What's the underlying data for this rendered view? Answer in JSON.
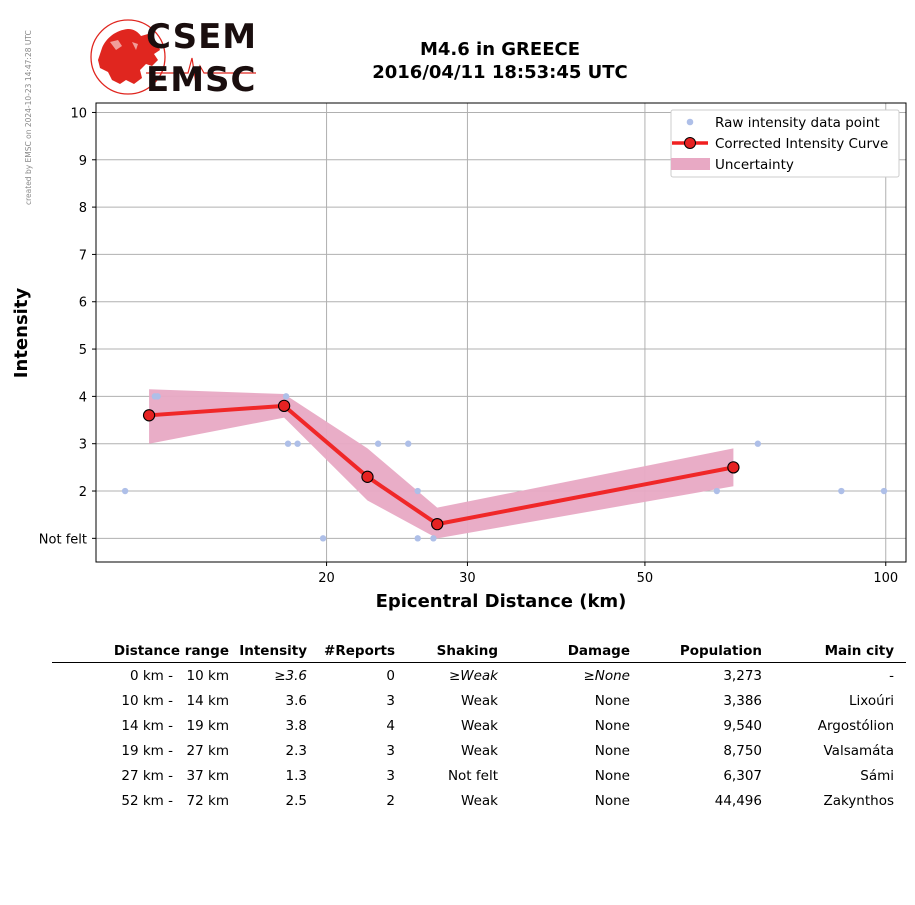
{
  "side_note": "created by EMSC on 2024-10-23 14:47:28 UTC",
  "logo": {
    "line1": "CSEM",
    "line2": "EMSC",
    "accent": "#e0261f"
  },
  "title": {
    "line1": "M4.6 in GREECE",
    "line2": "2016/04/11 18:53:45 UTC"
  },
  "chart_data": {
    "type": "line",
    "xlabel": "Epicentral Distance (km)",
    "ylabel": "Intensity",
    "xscale": "log",
    "xlim": [
      10.3,
      106
    ],
    "ylim": [
      0.5,
      10.2
    ],
    "xticks": [
      20,
      30,
      50,
      100
    ],
    "yticks": [
      {
        "value": 1,
        "label": "Not felt"
      },
      {
        "value": 2,
        "label": "2"
      },
      {
        "value": 3,
        "label": "3"
      },
      {
        "value": 4,
        "label": "4"
      },
      {
        "value": 5,
        "label": "5"
      },
      {
        "value": 6,
        "label": "6"
      },
      {
        "value": 7,
        "label": "7"
      },
      {
        "value": 8,
        "label": "8"
      },
      {
        "value": 9,
        "label": "9"
      },
      {
        "value": 10,
        "label": "10"
      }
    ],
    "grid": true,
    "legend_position": "top-right",
    "series": [
      {
        "name": "Raw intensity data point",
        "kind": "scatter",
        "color": "#aebfe8",
        "points": [
          [
            11.2,
            2
          ],
          [
            12.2,
            4
          ],
          [
            12.3,
            4
          ],
          [
            17.8,
            4
          ],
          [
            17.9,
            3
          ],
          [
            18.4,
            3
          ],
          [
            19.8,
            1
          ],
          [
            23.2,
            3
          ],
          [
            25.3,
            3
          ],
          [
            26.0,
            2
          ],
          [
            26.0,
            1
          ],
          [
            27.2,
            1
          ],
          [
            61.5,
            2
          ],
          [
            69.2,
            3
          ],
          [
            88.0,
            2
          ],
          [
            99.5,
            2
          ]
        ]
      },
      {
        "name": "Corrected Intensity Curve",
        "kind": "line",
        "color": "#f02020",
        "marker_color": "#e62222",
        "points": [
          [
            12,
            3.6
          ],
          [
            17.7,
            3.8
          ],
          [
            22.5,
            2.3
          ],
          [
            27.5,
            1.3
          ],
          [
            64.5,
            2.5
          ]
        ]
      },
      {
        "name": "Uncertainty",
        "kind": "band",
        "color": "#e8a9c4",
        "upper": [
          [
            12,
            4.15
          ],
          [
            17.7,
            4.05
          ],
          [
            22.5,
            2.9
          ],
          [
            27.5,
            1.65
          ],
          [
            64.5,
            2.9
          ]
        ],
        "lower": [
          [
            12,
            3.0
          ],
          [
            17.7,
            3.55
          ],
          [
            22.5,
            1.8
          ],
          [
            27.5,
            1.0
          ],
          [
            64.5,
            2.1
          ]
        ]
      }
    ]
  },
  "table": {
    "headers": [
      "Distance range",
      "Intensity",
      "#Reports",
      "Shaking",
      "Damage",
      "Population",
      "Main city"
    ],
    "rows": [
      {
        "min": "0 km -",
        "max": "10 km",
        "intensity": "≥3.6",
        "reports": "0",
        "shaking": "≥Weak",
        "damage": "≥None",
        "population": "3,273",
        "city": "-",
        "italic": true
      },
      {
        "min": "10 km -",
        "max": "14 km",
        "intensity": "3.6",
        "reports": "3",
        "shaking": "Weak",
        "damage": "None",
        "population": "3,386",
        "city": "Lixoúri",
        "italic": false
      },
      {
        "min": "14 km -",
        "max": "19 km",
        "intensity": "3.8",
        "reports": "4",
        "shaking": "Weak",
        "damage": "None",
        "population": "9,540",
        "city": "Argostólion",
        "italic": false
      },
      {
        "min": "19 km -",
        "max": "27 km",
        "intensity": "2.3",
        "reports": "3",
        "shaking": "Weak",
        "damage": "None",
        "population": "8,750",
        "city": "Valsamáta",
        "italic": false
      },
      {
        "min": "27 km -",
        "max": "37 km",
        "intensity": "1.3",
        "reports": "3",
        "shaking": "Not felt",
        "damage": "None",
        "population": "6,307",
        "city": "Sámi",
        "italic": false
      },
      {
        "min": "52 km -",
        "max": "72 km",
        "intensity": "2.5",
        "reports": "2",
        "shaking": "Weak",
        "damage": "None",
        "population": "44,496",
        "city": "Zakynthos",
        "italic": false
      }
    ]
  }
}
